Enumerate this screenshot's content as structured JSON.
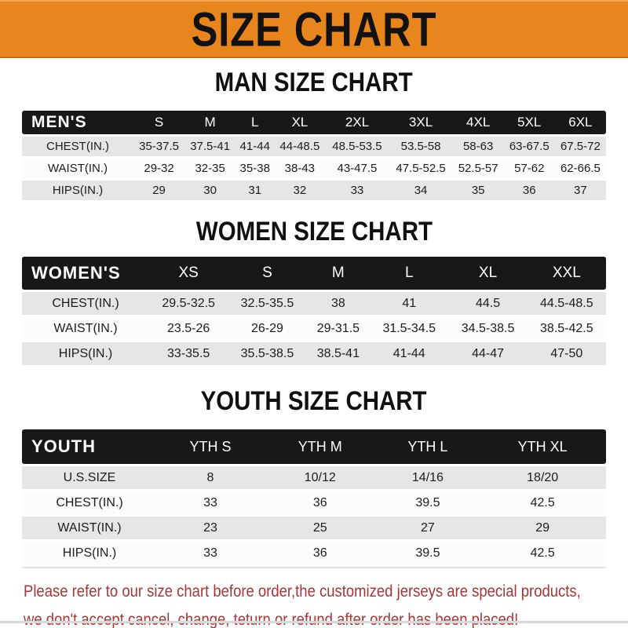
{
  "banner": {
    "title": "SIZE CHART"
  },
  "colors": {
    "banner_orange": "#E8861D",
    "header_black": "#181818",
    "row_gray": "#E6E6E6",
    "row_white": "#FCFCFC",
    "footer_red": "#A63636"
  },
  "chart_data": [
    {
      "type": "table",
      "title": "MAN SIZE CHART",
      "header_label": "MEN'S",
      "columns": [
        "S",
        "M",
        "L",
        "XL",
        "2XL",
        "3XL",
        "4XL",
        "5XL",
        "6XL"
      ],
      "rows": [
        {
          "label": "CHEST(IN.)",
          "values": [
            "35-37.5",
            "37.5-41",
            "41-44",
            "44-48.5",
            "48.5-53.5",
            "53.5-58",
            "58-63",
            "63-67.5",
            "67.5-72"
          ]
        },
        {
          "label": "WAIST(IN.)",
          "values": [
            "29-32",
            "32-35",
            "35-38",
            "38-43",
            "43-47.5",
            "47.5-52.5",
            "52.5-57",
            "57-62",
            "62-66.5"
          ]
        },
        {
          "label": "HIPS(IN.)",
          "values": [
            "29",
            "30",
            "31",
            "32",
            "33",
            "34",
            "35",
            "36",
            "37"
          ]
        }
      ]
    },
    {
      "type": "table",
      "title": "WOMEN SIZE CHART",
      "header_label": "WOMEN'S",
      "columns": [
        "XS",
        "S",
        "M",
        "L",
        "XL",
        "XXL"
      ],
      "rows": [
        {
          "label": "CHEST(IN.)",
          "values": [
            "29.5-32.5",
            "32.5-35.5",
            "38",
            "41",
            "44.5",
            "44.5-48.5"
          ]
        },
        {
          "label": "WAIST(IN.)",
          "values": [
            "23.5-26",
            "26-29",
            "29-31.5",
            "31.5-34.5",
            "34.5-38.5",
            "38.5-42.5"
          ]
        },
        {
          "label": "HIPS(IN.)",
          "values": [
            "33-35.5",
            "35.5-38.5",
            "38.5-41",
            "41-44",
            "44-47",
            "47-50"
          ]
        }
      ]
    },
    {
      "type": "table",
      "title": "YOUTH SIZE CHART",
      "header_label": "YOUTH",
      "columns": [
        "YTH S",
        "YTH M",
        "YTH L",
        "YTH XL"
      ],
      "rows": [
        {
          "label": "U.S.SIZE",
          "values": [
            "8",
            "10/12",
            "14/16",
            "18/20"
          ]
        },
        {
          "label": "CHEST(IN.)",
          "values": [
            "33",
            "36",
            "39.5",
            "42.5"
          ]
        },
        {
          "label": "WAIST(IN.)",
          "values": [
            "23",
            "25",
            "27",
            "29"
          ]
        },
        {
          "label": "HIPS(IN.)",
          "values": [
            "33",
            "36",
            "39.5",
            "42.5"
          ]
        }
      ]
    }
  ],
  "footer": {
    "line1": "Please refer to our size chart before order,the customized jerseys are special products,",
    "line2": "we don't accept cancel, change, teturn or refund after order has been placed!"
  }
}
